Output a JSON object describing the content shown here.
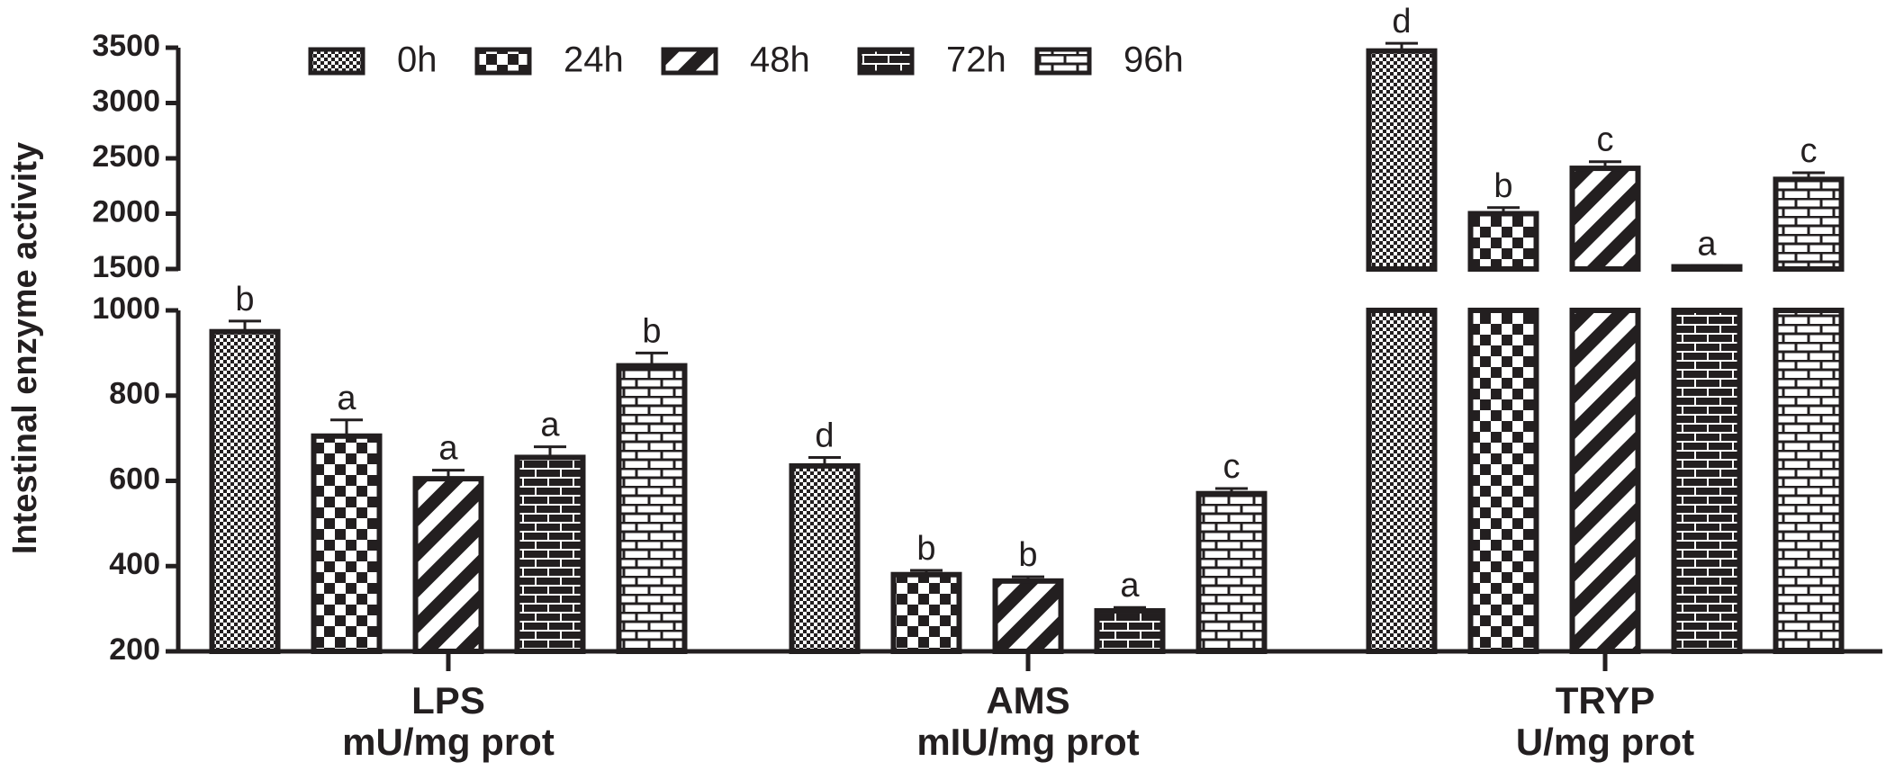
{
  "chart_data": {
    "type": "bar",
    "ylabel": "Intestinal enzyme activity",
    "categories": [
      "LPS",
      "AMS",
      "TRYP"
    ],
    "units": [
      "mU/mg prot",
      "mIU/mg prot",
      "U/mg prot"
    ],
    "segments": [
      {
        "ylim": [
          200,
          1000
        ],
        "yticks": [
          200,
          400,
          600,
          800,
          1000
        ]
      },
      {
        "ylim": [
          1500,
          3500
        ],
        "yticks": [
          1500,
          2000,
          2500,
          3000,
          3500
        ]
      }
    ],
    "legend": "top",
    "series": [
      {
        "name": "0h",
        "color": "#231f20",
        "values": [
          950,
          635,
          3470
        ],
        "errors": [
          25,
          20,
          70
        ],
        "significance": [
          "b",
          "d",
          "d"
        ]
      },
      {
        "name": "24h",
        "color": "#231f20",
        "values": [
          705,
          380,
          2000
        ],
        "errors": [
          38,
          10,
          55
        ],
        "significance": [
          "a",
          "b",
          "b"
        ]
      },
      {
        "name": "48h",
        "color": "#231f20",
        "values": [
          605,
          365,
          2410
        ],
        "errors": [
          20,
          10,
          60
        ],
        "significance": [
          "a",
          "b",
          "c"
        ]
      },
      {
        "name": "72h",
        "color": "#231f20",
        "values": [
          655,
          295,
          1520
        ],
        "errors": [
          25,
          8,
          10
        ],
        "significance": [
          "a",
          "a",
          "a"
        ]
      },
      {
        "name": "96h",
        "color": "#231f20",
        "values": [
          870,
          570,
          2310
        ],
        "errors": [
          30,
          12,
          60
        ],
        "significance": [
          "b",
          "c",
          "c"
        ]
      }
    ]
  }
}
